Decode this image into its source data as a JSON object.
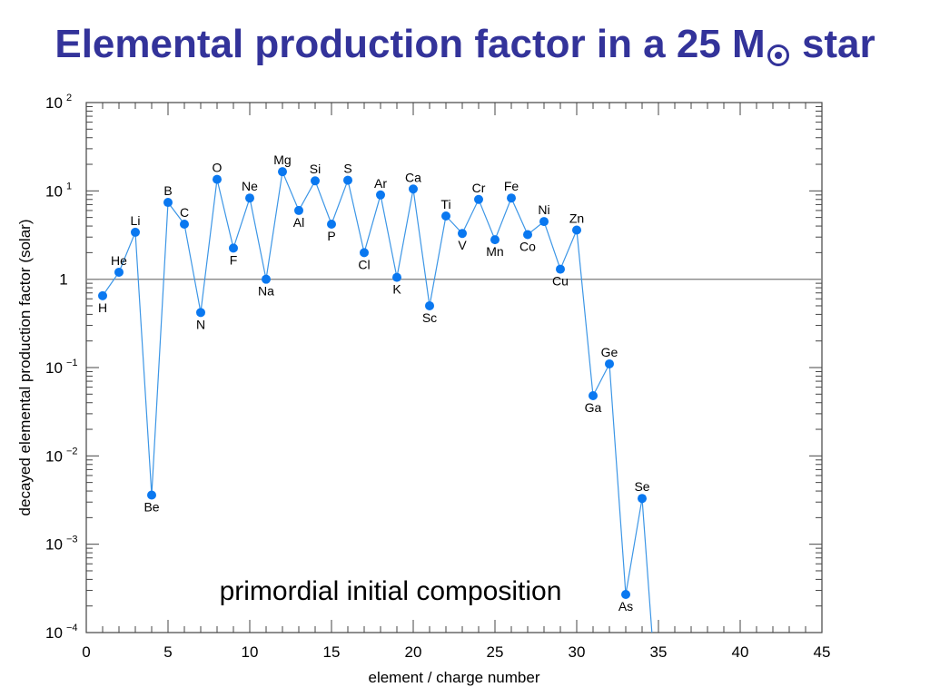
{
  "title": {
    "text": "Elemental production factor in a 25 M",
    "suffix": "star",
    "symbol": "sun-symbol"
  },
  "chart_data": {
    "type": "line",
    "title": "Elemental production factor in a 25 M☉ star",
    "xlabel": "element  / charge number",
    "ylabel": "decayed elemental production factor (solar)",
    "xlim": [
      0,
      45
    ],
    "ylim": [
      0.0001,
      100
    ],
    "y_scale": "log",
    "x_ticks": [
      0,
      5,
      10,
      15,
      20,
      25,
      30,
      35,
      40,
      45
    ],
    "y_ticks": [
      {
        "value": 100,
        "base": "10",
        "exp": "2"
      },
      {
        "value": 10,
        "base": "10",
        "exp": "1"
      },
      {
        "value": 1,
        "base": "1",
        "exp": ""
      },
      {
        "value": 0.1,
        "base": "10",
        "exp": "−1"
      },
      {
        "value": 0.01,
        "base": "10",
        "exp": "−2"
      },
      {
        "value": 0.001,
        "base": "10",
        "exp": "−3"
      },
      {
        "value": 0.0001,
        "base": "10",
        "exp": "−4"
      }
    ],
    "reference_line": 1,
    "annotation": "primordial initial composition",
    "colors": {
      "points": "#0a78f0",
      "line": "#3c96e6",
      "title": "#33339a"
    },
    "series": [
      {
        "points": [
          {
            "el": "H",
            "z": 1,
            "y": 0.65
          },
          {
            "el": "He",
            "z": 2,
            "y": 1.2
          },
          {
            "el": "Li",
            "z": 3,
            "y": 3.4
          },
          {
            "el": "Be",
            "z": 4,
            "y": 0.0036
          },
          {
            "el": "B",
            "z": 5,
            "y": 7.4
          },
          {
            "el": "C",
            "z": 6,
            "y": 4.2
          },
          {
            "el": "N",
            "z": 7,
            "y": 0.42
          },
          {
            "el": "O",
            "z": 8,
            "y": 13.5
          },
          {
            "el": "F",
            "z": 9,
            "y": 2.25
          },
          {
            "el": "Ne",
            "z": 10,
            "y": 8.3
          },
          {
            "el": "Na",
            "z": 11,
            "y": 1.0
          },
          {
            "el": "Mg",
            "z": 12,
            "y": 16.5
          },
          {
            "el": "Al",
            "z": 13,
            "y": 6.0
          },
          {
            "el": "Si",
            "z": 14,
            "y": 13.0
          },
          {
            "el": "P",
            "z": 15,
            "y": 4.2
          },
          {
            "el": "S",
            "z": 16,
            "y": 13.2
          },
          {
            "el": "Cl",
            "z": 17,
            "y": 2.0
          },
          {
            "el": "Ar",
            "z": 18,
            "y": 9.0
          },
          {
            "el": "K",
            "z": 19,
            "y": 1.05
          },
          {
            "el": "Ca",
            "z": 20,
            "y": 10.5
          },
          {
            "el": "Sc",
            "z": 21,
            "y": 0.5
          },
          {
            "el": "Ti",
            "z": 22,
            "y": 5.2
          },
          {
            "el": "V",
            "z": 23,
            "y": 3.3
          },
          {
            "el": "Cr",
            "z": 24,
            "y": 8.0
          },
          {
            "el": "Mn",
            "z": 25,
            "y": 2.8
          },
          {
            "el": "Fe",
            "z": 26,
            "y": 8.3
          },
          {
            "el": "Co",
            "z": 27,
            "y": 3.2
          },
          {
            "el": "Ni",
            "z": 28,
            "y": 4.5
          },
          {
            "el": "Cu",
            "z": 29,
            "y": 1.3
          },
          {
            "el": "Zn",
            "z": 30,
            "y": 3.6
          },
          {
            "el": "Ga",
            "z": 31,
            "y": 0.048
          },
          {
            "el": "Ge",
            "z": 32,
            "y": 0.11
          },
          {
            "el": "As",
            "z": 33,
            "y": 0.00027
          },
          {
            "el": "Se",
            "z": 34,
            "y": 0.0033
          }
        ]
      }
    ]
  }
}
